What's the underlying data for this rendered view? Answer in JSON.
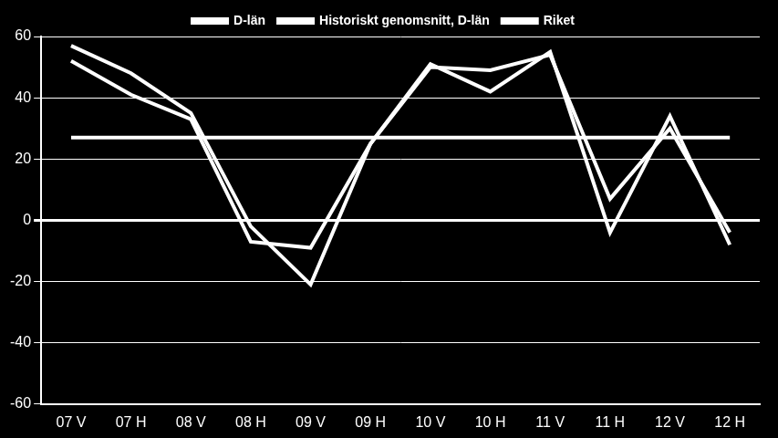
{
  "chart_data": {
    "type": "line",
    "categories": [
      "07 V",
      "07 H",
      "08 V",
      "08 H",
      "09 V",
      "09 H",
      "10 V",
      "10 H",
      "11 V",
      "11 H",
      "12 V",
      "12 H"
    ],
    "series": [
      {
        "name": "D-län",
        "color": "#ffffff",
        "values": [
          52,
          41,
          33,
          -7,
          -9,
          25,
          50,
          49,
          54,
          7,
          30,
          -4
        ]
      },
      {
        "name": "Historiskt genomsnitt, D-län",
        "color": "#ffffff",
        "values": [
          27,
          27,
          27,
          27,
          27,
          27,
          27,
          27,
          27,
          27,
          27,
          27
        ]
      },
      {
        "name": "Riket",
        "color": "#ffffff",
        "values": [
          57,
          48,
          35,
          -2,
          -21,
          25,
          51,
          42,
          55,
          -4,
          34,
          -8
        ]
      }
    ],
    "ylim": [
      -60,
      60
    ],
    "yticks": [
      -60,
      -40,
      -20,
      0,
      20,
      40,
      60
    ],
    "grid": true,
    "legend": "top"
  }
}
